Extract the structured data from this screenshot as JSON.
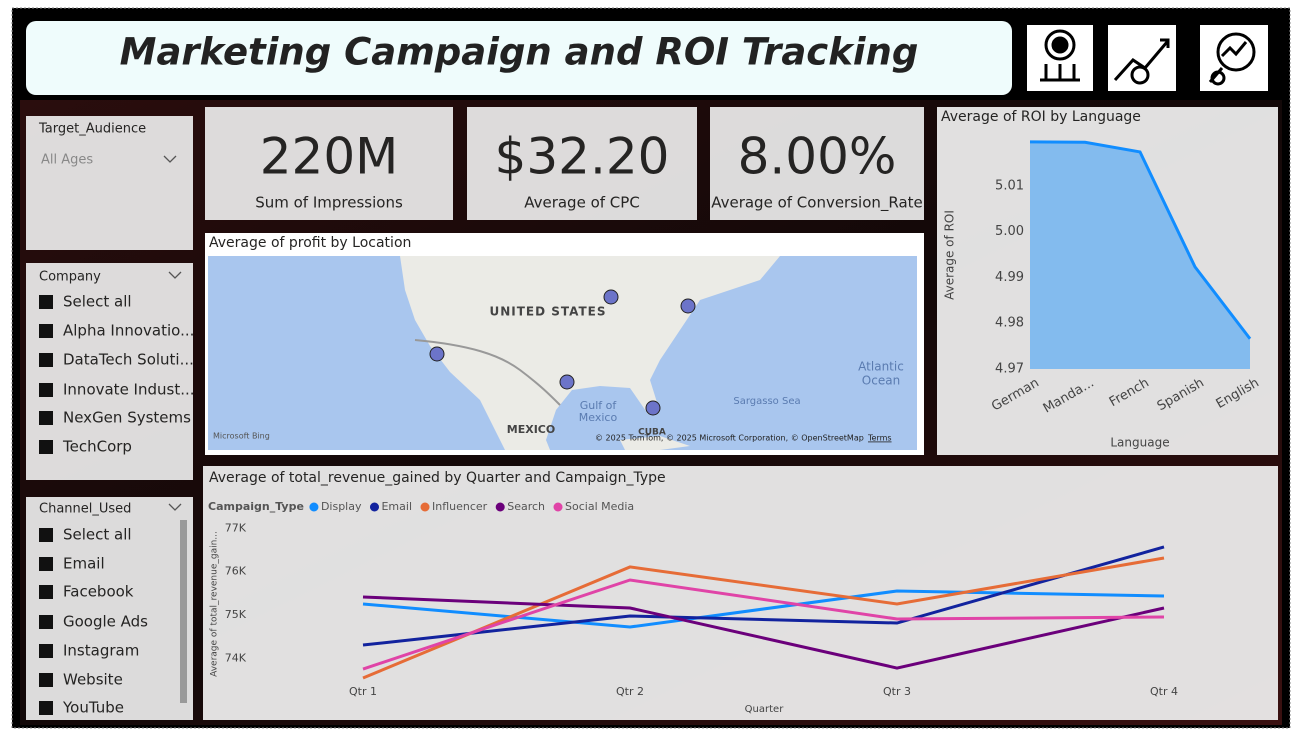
{
  "header": {
    "title": "Marketing Campaign and ROI Tracking"
  },
  "kpis": [
    {
      "value": "220M",
      "label": "Sum of Impressions"
    },
    {
      "value": "$32.20",
      "label": "Average of CPC"
    },
    {
      "value": "8.00%",
      "label": "Average of Conversion_Rate"
    }
  ],
  "slicers": {
    "target_audience": {
      "title": "Target_Audience",
      "selected": "All Ages"
    },
    "company": {
      "title": "Company",
      "items": [
        "Select all",
        "Alpha Innovatio...",
        "DataTech Soluti...",
        "Innovate Indust...",
        "NexGen Systems",
        "TechCorp"
      ]
    },
    "channel": {
      "title": "Channel_Used",
      "items": [
        "Select all",
        "Email",
        "Facebook",
        "Google Ads",
        "Instagram",
        "Website",
        "YouTube"
      ]
    }
  },
  "map": {
    "title": "Average of profit by Location",
    "labels": [
      "UNITED STATES",
      "Gulf of",
      "Mexico",
      "MEXICO",
      "CUBA",
      "Atlantic",
      "Ocean",
      "Sargasso Sea"
    ],
    "logo": "Microsoft Bing",
    "attribution": "© 2025 TomTom, © 2025 Microsoft Corporation, © OpenStreetMap",
    "terms": "Terms"
  },
  "chart_data": [
    {
      "type": "area",
      "title": "Average of ROI by Language",
      "x_label": "Language",
      "y_label": "Average of ROI",
      "categories": [
        "German",
        "Manda...",
        "French",
        "Spanish",
        "English"
      ],
      "values": [
        5.0196,
        5.0195,
        5.0174,
        4.9923,
        4.9766
      ],
      "color": "#118dff",
      "ylim": [
        4.97,
        5.02
      ],
      "yticks": [
        4.97,
        4.98,
        4.99,
        {
          "value": 5,
          "label": "5.00"
        },
        5.01
      ]
    },
    {
      "type": "line",
      "title": "Average of total_revenue_gained by Quarter and Campaign_Type",
      "legend_title": "Campaign_Type",
      "x_label": "Quarter",
      "y_label": "Average of total_revenue_gain...",
      "categories": [
        "Qtr 1",
        "Qtr 2",
        "Qtr 3",
        "Qtr 4"
      ],
      "series": [
        {
          "name": "Display",
          "color": "#118dff",
          "values": [
            75254,
            74723,
            75554,
            75439
          ]
        },
        {
          "name": "Email",
          "color": "#12239e",
          "values": [
            74307,
            74977,
            74815,
            76570
          ]
        },
        {
          "name": "Influencer",
          "color": "#e66c37",
          "values": [
            73545,
            76109,
            75254,
            76316
          ]
        },
        {
          "name": "Search",
          "color": "#6b007b",
          "values": [
            75416,
            75162,
            73776,
            75162
          ]
        },
        {
          "name": "Social Media",
          "color": "#e044a7",
          "values": [
            73753,
            75808,
            74908,
            74954
          ]
        }
      ],
      "ylim": [
        73500,
        77100
      ],
      "yticks": [
        {
          "value": 74000,
          "label": "74K"
        },
        {
          "value": 75000,
          "label": "75K"
        },
        {
          "value": 76000,
          "label": "76K"
        },
        {
          "value": 77000,
          "label": "77K"
        }
      ]
    }
  ]
}
